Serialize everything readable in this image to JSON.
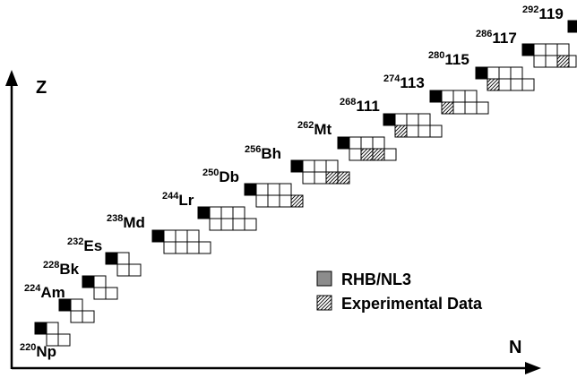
{
  "axes": {
    "z_label": "Z",
    "n_label": "N"
  },
  "legend": {
    "items": [
      {
        "label": "RHB/NL3",
        "swatch": "solid"
      },
      {
        "label": "Experimental Data",
        "swatch": "hatched"
      }
    ]
  },
  "colors": {
    "ink": "#000000",
    "cell_fill": "#ffffff",
    "legend_solid": "#8c8c8c"
  },
  "chains": [
    {
      "mass": "220",
      "element": "Np",
      "cols": 2
    },
    {
      "mass": "224",
      "element": "Am",
      "cols": 2
    },
    {
      "mass": "228",
      "element": "Bk",
      "cols": 2
    },
    {
      "mass": "232",
      "element": "Es",
      "cols": 2
    },
    {
      "mass": "238",
      "element": "Md",
      "cols": 4
    },
    {
      "mass": "244",
      "element": "Lr",
      "cols": 4
    },
    {
      "mass": "250",
      "element": "Db",
      "cols": 4,
      "hatched": [
        3
      ]
    },
    {
      "mass": "256",
      "element": "Bh",
      "cols": 4,
      "hatched": [
        2,
        3
      ]
    },
    {
      "mass": "262",
      "element": "Mt",
      "cols": 4,
      "hatched": [
        1,
        2
      ]
    },
    {
      "mass": "268",
      "element": "111",
      "cols": 4,
      "hatched": [
        0
      ]
    },
    {
      "mass": "274",
      "element": "113",
      "cols": 4,
      "hatched": [
        0
      ]
    },
    {
      "mass": "280",
      "element": "115",
      "cols": 4,
      "hatched": [
        0
      ]
    },
    {
      "mass": "286",
      "element": "117",
      "cols": 4,
      "hatched": [
        2
      ]
    },
    {
      "mass": "292",
      "element": "119",
      "cols": 2
    }
  ]
}
